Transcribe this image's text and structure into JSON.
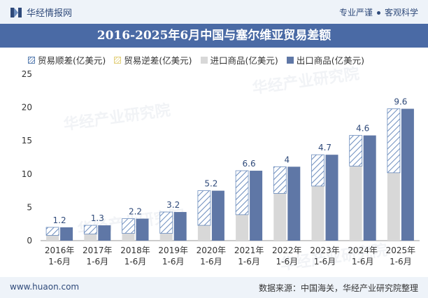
{
  "header": {
    "brand": "华经情报网",
    "tagline_left": "专业严谨",
    "tagline_right": "客观科学"
  },
  "watermark_text": "华经产业研究院",
  "chart_data": {
    "type": "bar",
    "title": "2016-2025年6月中国与塞尔维亚贸易差额",
    "categories": [
      "2016年\n1-6月",
      "2017年\n1-6月",
      "2018年\n1-6月",
      "2019年\n1-6月",
      "2020年\n1-6月",
      "2021年\n1-6月",
      "2022年\n1-6月",
      "2023年\n1-6月",
      "2024年\n1-6月",
      "2025年\n1-6月"
    ],
    "series": [
      {
        "name": "贸易顺差(亿美元)",
        "values": [
          1.2,
          1.3,
          2.2,
          3.2,
          5.2,
          6.6,
          4,
          4.7,
          4.6,
          9.6
        ]
      },
      {
        "name": "贸易逆差(亿美元)",
        "values": [
          0,
          0,
          0,
          0,
          0,
          0,
          0,
          0,
          0,
          0
        ]
      },
      {
        "name": "进口商品(亿美元)",
        "values": [
          0.8,
          1.0,
          1.1,
          1.1,
          2.3,
          3.9,
          7.1,
          8.2,
          11.2,
          10.2
        ]
      },
      {
        "name": "出口商品(亿美元)",
        "values": [
          2.0,
          2.3,
          3.3,
          4.3,
          7.5,
          10.5,
          11.1,
          12.9,
          15.8,
          19.8
        ]
      }
    ],
    "data_labels": [
      "1.2",
      "1.3",
      "2.2",
      "3.2",
      "5.2",
      "6.6",
      "4",
      "4.7",
      "4.6",
      "9.6"
    ],
    "ylim": [
      0,
      25
    ],
    "yticks": [
      0,
      5,
      10,
      15,
      20,
      25
    ],
    "grid": false,
    "legend_position": "top-left",
    "colors": {
      "surplus": "#6b8cbd",
      "deficit": "#e7d68d",
      "import": "#d8d8d8",
      "export": "#5f77a6",
      "label": "#2f4a7a"
    }
  },
  "footer": {
    "website": "www.huaon.com",
    "source": "数据来源：中国海关，华经产业研究院整理"
  }
}
